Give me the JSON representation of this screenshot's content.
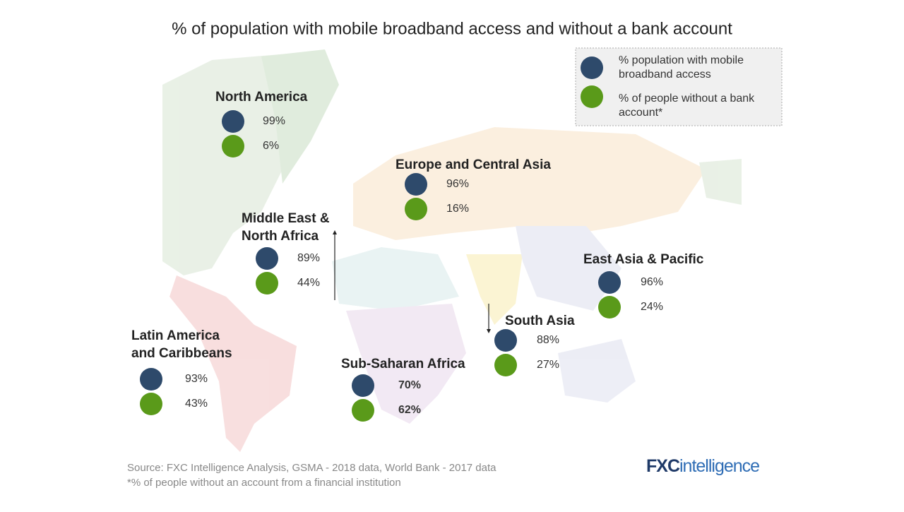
{
  "title": "% of population with mobile broadband access and without a bank account",
  "legend": {
    "broadband": "% population with mobile broadband access",
    "unbanked": "% of people without a bank account*"
  },
  "regions": [
    {
      "name": [
        "North America"
      ],
      "broadband": "99%",
      "unbanked": "6%"
    },
    {
      "name": [
        "Europe and Central Asia"
      ],
      "broadband": "96%",
      "unbanked": "16%"
    },
    {
      "name": [
        "Middle East &",
        "North Africa"
      ],
      "broadband": "89%",
      "unbanked": "44%"
    },
    {
      "name": [
        "East Asia & Pacific"
      ],
      "broadband": "96%",
      "unbanked": "24%"
    },
    {
      "name": [
        "South Asia"
      ],
      "broadband": "88%",
      "unbanked": "27%"
    },
    {
      "name": [
        "Latin America",
        "and Caribbeans"
      ],
      "broadband": "93%",
      "unbanked": "43%"
    },
    {
      "name": [
        "Sub-Saharan Africa"
      ],
      "broadband": "70%",
      "unbanked": "62%"
    }
  ],
  "source": "Source: FXC Intelligence Analysis, GSMA - 2018 data, World Bank - 2017 data",
  "footnote": "*% of people without an account from a financial institution",
  "logo": {
    "prefix": "FXC",
    "suffix": "intelligence"
  }
}
